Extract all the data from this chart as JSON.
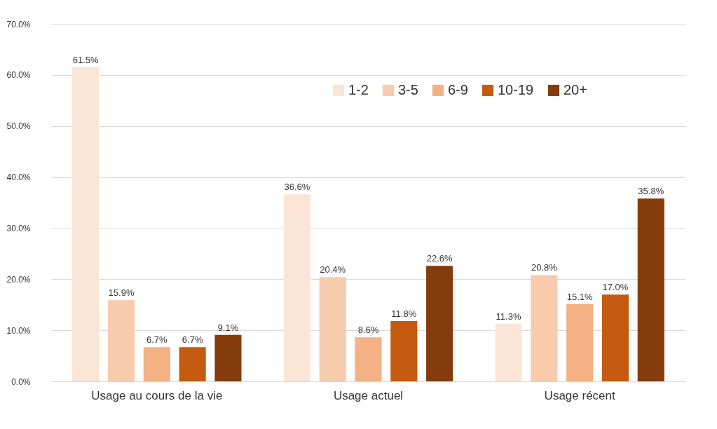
{
  "chart_data": {
    "type": "bar",
    "categories": [
      "Usage au cours de la vie",
      "Usage actuel",
      "Usage récent"
    ],
    "series": [
      {
        "name": "1-2",
        "color": "#fbe5d6",
        "values": [
          61.5,
          36.6,
          11.3
        ],
        "value_labels": [
          "61.5%",
          "36.6%",
          "11.3%"
        ]
      },
      {
        "name": "3-5",
        "color": "#f8cbad",
        "values": [
          15.9,
          20.4,
          20.8
        ],
        "value_labels": [
          "15.9%",
          "20.4%",
          "20.8%"
        ]
      },
      {
        "name": "6-9",
        "color": "#f4b183",
        "values": [
          6.7,
          8.6,
          15.1
        ],
        "value_labels": [
          "6.7%",
          "8.6%",
          "15.1%"
        ]
      },
      {
        "name": "10-19",
        "color": "#c55a11",
        "values": [
          6.7,
          11.8,
          17.0
        ],
        "value_labels": [
          "6.7%",
          "11.8%",
          "17.0%"
        ]
      },
      {
        "name": "20+",
        "color": "#843c0c",
        "values": [
          9.1,
          22.6,
          35.8
        ],
        "value_labels": [
          "9.1%",
          "22.6%",
          "35.8%"
        ]
      }
    ],
    "ylim": [
      0,
      70
    ],
    "yticks": [
      {
        "value": 0,
        "label": "0.0%"
      },
      {
        "value": 10,
        "label": "10.0%"
      },
      {
        "value": 20,
        "label": "20.0%"
      },
      {
        "value": 30,
        "label": "30.0%"
      },
      {
        "value": 40,
        "label": "40.0%"
      },
      {
        "value": 50,
        "label": "50.0%"
      },
      {
        "value": 60,
        "label": "60.0%"
      },
      {
        "value": 70,
        "label": "70.0%"
      }
    ],
    "grid": "y",
    "legend": "top right"
  }
}
